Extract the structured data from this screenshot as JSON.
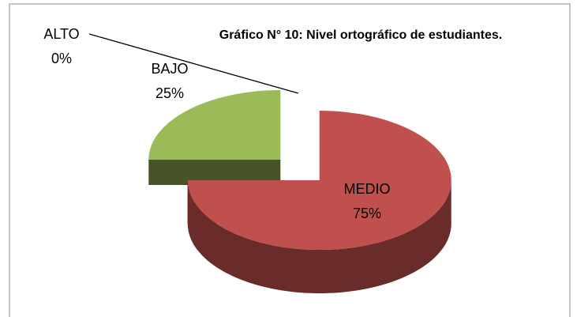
{
  "chart_data": {
    "type": "pie3d",
    "title": "Gráfico N° 10: Nivel ortográfico de estudiantes.",
    "categories": [
      "ALTO",
      "BAJO",
      "MEDIO"
    ],
    "values": [
      0,
      25,
      75
    ],
    "value_labels": [
      "0%",
      "25%",
      "75%"
    ],
    "colors": [
      "#4f81bd",
      "#9bbb59",
      "#c0504d"
    ]
  }
}
